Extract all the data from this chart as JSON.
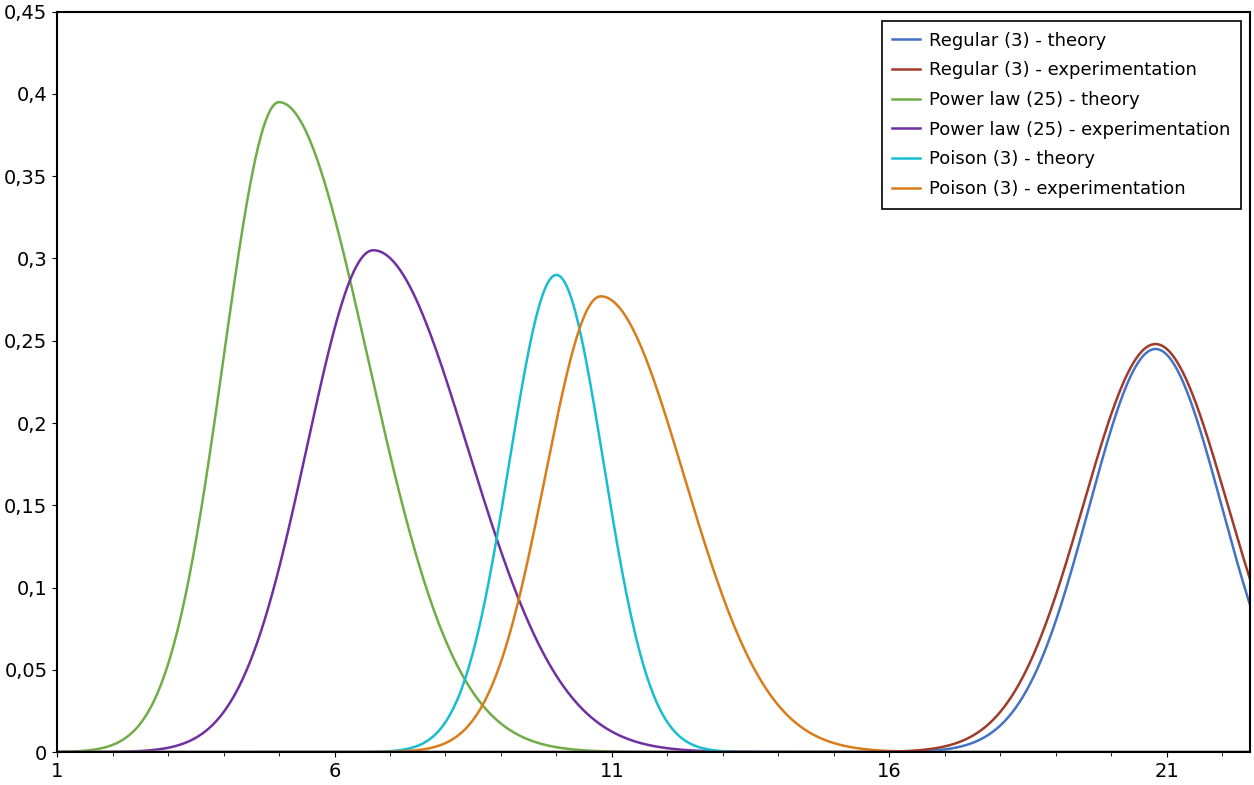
{
  "xlim": [
    1,
    22.5
  ],
  "ylim": [
    0,
    0.45
  ],
  "xticks": [
    1,
    6,
    11,
    16,
    21
  ],
  "yticks": [
    0,
    0.05,
    0.1,
    0.15,
    0.2,
    0.25,
    0.3,
    0.35,
    0.4,
    0.45
  ],
  "legend_entries": [
    {
      "label": "Regular (3) - theory",
      "color": "#4472C4"
    },
    {
      "label": "Regular (3) - experimentation",
      "color": "#9E3B2B"
    },
    {
      "label": "Power law (25) - theory",
      "color": "#70AD47"
    },
    {
      "label": "Power law (25) - experimentation",
      "color": "#7030A0"
    },
    {
      "label": "Poison (3) - theory",
      "color": "#17BECF"
    },
    {
      "label": "Poison (3) - experimentation",
      "color": "#D97C1A"
    }
  ],
  "background_color": "#FFFFFF",
  "line_width": 1.8,
  "font_size": 14,
  "curves": {
    "pw_theory": {
      "mu": 5.0,
      "sig_l": 1.0,
      "sig_r": 1.6,
      "amp": 0.395
    },
    "pw_exp": {
      "mu": 6.7,
      "sig_l": 1.2,
      "sig_r": 1.7,
      "amp": 0.305
    },
    "po_theory": {
      "mu": 10.0,
      "sig_l": 0.85,
      "sig_r": 0.85,
      "amp": 0.29
    },
    "po_exp": {
      "mu": 10.8,
      "sig_l": 1.0,
      "sig_r": 1.5,
      "amp": 0.277
    },
    "reg_theory": {
      "mu": 20.8,
      "sig_l": 1.2,
      "sig_r": 1.2,
      "amp": 0.245
    },
    "reg_exp": {
      "mu": 20.8,
      "sig_l": 1.3,
      "sig_r": 1.3,
      "amp": 0.248
    }
  }
}
